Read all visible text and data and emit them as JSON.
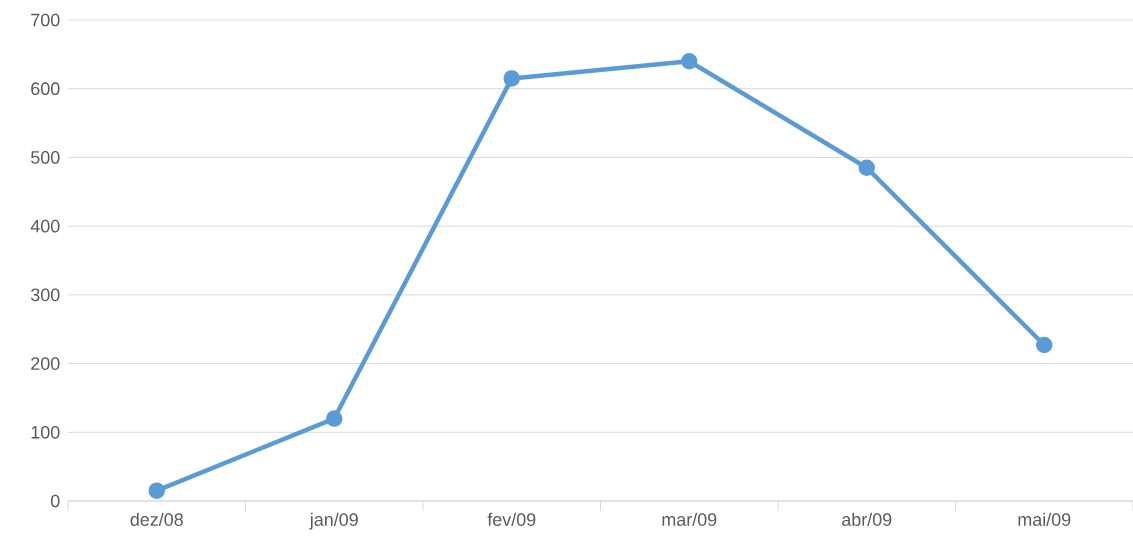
{
  "chart_data": {
    "type": "line",
    "categories": [
      "dez/08",
      "jan/09",
      "fev/09",
      "mar/09",
      "abr/09",
      "mai/09"
    ],
    "values": [
      15,
      120,
      615,
      640,
      485,
      227
    ],
    "color": "#5b9bd5",
    "marker": "circle",
    "line_style": "solid",
    "ylim": [
      0,
      700
    ],
    "yticks": [
      0,
      100,
      200,
      300,
      400,
      500,
      600,
      700
    ],
    "grid": "y"
  }
}
